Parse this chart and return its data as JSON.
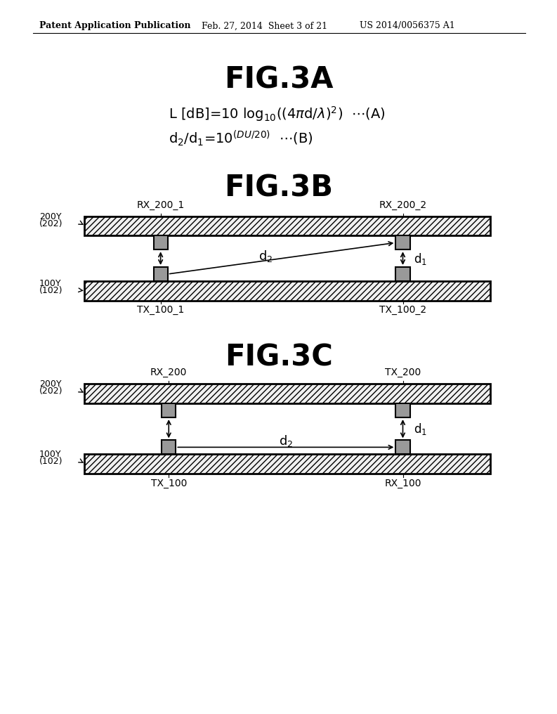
{
  "bg_color": "#ffffff",
  "header_left": "Patent Application Publication",
  "header_mid": "Feb. 27, 2014  Sheet 3 of 21",
  "header_right": "US 2014/0056375 A1",
  "fig3a_title": "FIG.3A",
  "fig3b_title": "FIG.3B",
  "fig3c_title": "FIG.3C",
  "hatch_pattern": "////",
  "board_facecolor": "#f0f0f0",
  "connector_facecolor": "#999999",
  "line_color": "#000000",
  "header_fontsize": 9,
  "title_fontsize": 30,
  "eq_fontsize": 14,
  "label_fontsize": 9,
  "anno_fontsize": 10,
  "board_lw": 2.0,
  "connector_lw": 1.5,
  "arrow_lw": 1.2
}
